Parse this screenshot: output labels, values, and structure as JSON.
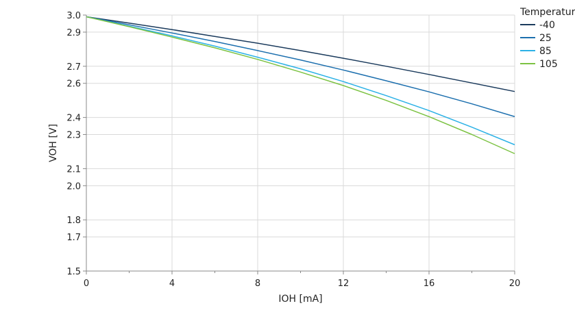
{
  "chart_data": {
    "type": "line",
    "title": "",
    "xlabel": "IOH [mA]",
    "ylabel": "VOH [V]",
    "xlim": [
      0,
      20
    ],
    "ylim": [
      1.5,
      3.0
    ],
    "x_ticks": [
      0,
      4,
      8,
      12,
      16,
      20
    ],
    "x_minor_ticks": [
      2,
      6,
      10,
      14,
      18
    ],
    "y_ticks": [
      1.5,
      1.7,
      1.8,
      2.0,
      2.1,
      2.3,
      2.4,
      2.6,
      2.7,
      2.9,
      3.0
    ],
    "y_tick_labels": [
      "1.5",
      "1.7",
      "1.8",
      "2.0",
      "2.1",
      "2.3",
      "2.4",
      "2.6",
      "2.7",
      "2.9",
      "3.0"
    ],
    "grid": true,
    "legend_title": "Temperature",
    "legend_position": "top-right",
    "x": [
      0,
      2,
      4,
      6,
      8,
      10,
      12,
      14,
      16,
      18,
      20
    ],
    "series": [
      {
        "name": "-40",
        "color": "#1a3a5c",
        "values": [
          2.99,
          2.953,
          2.915,
          2.875,
          2.835,
          2.792,
          2.747,
          2.7,
          2.652,
          2.602,
          2.552
        ]
      },
      {
        "name": "25",
        "color": "#1c6fae",
        "values": [
          2.99,
          2.943,
          2.895,
          2.845,
          2.792,
          2.737,
          2.678,
          2.615,
          2.55,
          2.48,
          2.405
        ]
      },
      {
        "name": "85",
        "color": "#2bb1e6",
        "values": [
          2.99,
          2.935,
          2.878,
          2.818,
          2.753,
          2.685,
          2.61,
          2.528,
          2.44,
          2.343,
          2.24
        ]
      },
      {
        "name": "105",
        "color": "#7cc242",
        "values": [
          2.99,
          2.932,
          2.871,
          2.808,
          2.74,
          2.666,
          2.587,
          2.5,
          2.405,
          2.3,
          2.188
        ]
      }
    ]
  }
}
